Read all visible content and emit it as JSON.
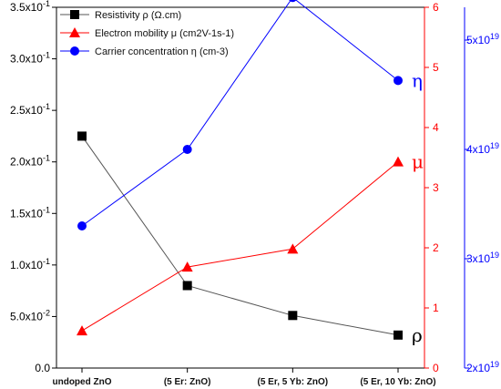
{
  "chart_data": {
    "type": "line",
    "categories": [
      "undoped ZnO",
      "(5 Er: ZnO)",
      "(5 Er, 5 Yb: ZnO)",
      "(5 Er, 10 Yb: ZnO)"
    ],
    "axes": {
      "left": {
        "ylim": [
          0,
          0.35
        ],
        "ticks": [
          0,
          0.05,
          0.1,
          0.15,
          0.2,
          0.25,
          0.3,
          0.35
        ],
        "tick_labels": [
          "0.0",
          "5.0x10-2",
          "1.0x10-1",
          "1.5x10-1",
          "2.0x10-1",
          "2.5x10-1",
          "3.0x10-1",
          "3.5x10-1"
        ],
        "color": "#000000"
      },
      "right_inner": {
        "ylim": [
          0,
          6
        ],
        "ticks": [
          0,
          1,
          2,
          3,
          4,
          5,
          6
        ],
        "tick_labels": [
          "0",
          "1",
          "2",
          "3",
          "4",
          "5",
          "6"
        ],
        "color": "#ff0000"
      },
      "right_outer": {
        "ylim": [
          2e+19,
          5.3e+19
        ],
        "ticks": [
          2e+19,
          3e+19,
          4e+19,
          5e+19
        ],
        "tick_labels": [
          "2x10^19",
          "3x10^19",
          "4x10^19",
          "5x10^19"
        ],
        "color": "#0000ff"
      }
    },
    "series": [
      {
        "name": "Resistivity ρ (Ω.cm)",
        "axis": "left",
        "marker": "square",
        "color": "#000000",
        "line_color": "#555555",
        "values": [
          0.225,
          0.08,
          0.051,
          0.032
        ],
        "tag": "ρ"
      },
      {
        "name": "Electron mobility μ (cm2V-1s-1)",
        "axis": "right_inner",
        "marker": "triangle",
        "color": "#ff0000",
        "line_color": "#ff0000",
        "values": [
          0.62,
          1.68,
          1.98,
          3.43
        ],
        "tag": "μ"
      },
      {
        "name": "Carrier concentration η (cm-3)",
        "axis": "right_outer",
        "marker": "circle",
        "color": "#0000ff",
        "line_color": "#0000ff",
        "values": [
          3.3e+19,
          4e+19,
          5.39e+19,
          4.63e+19
        ],
        "tag": "η"
      }
    ],
    "legend_position": "top-left",
    "grid": false
  }
}
